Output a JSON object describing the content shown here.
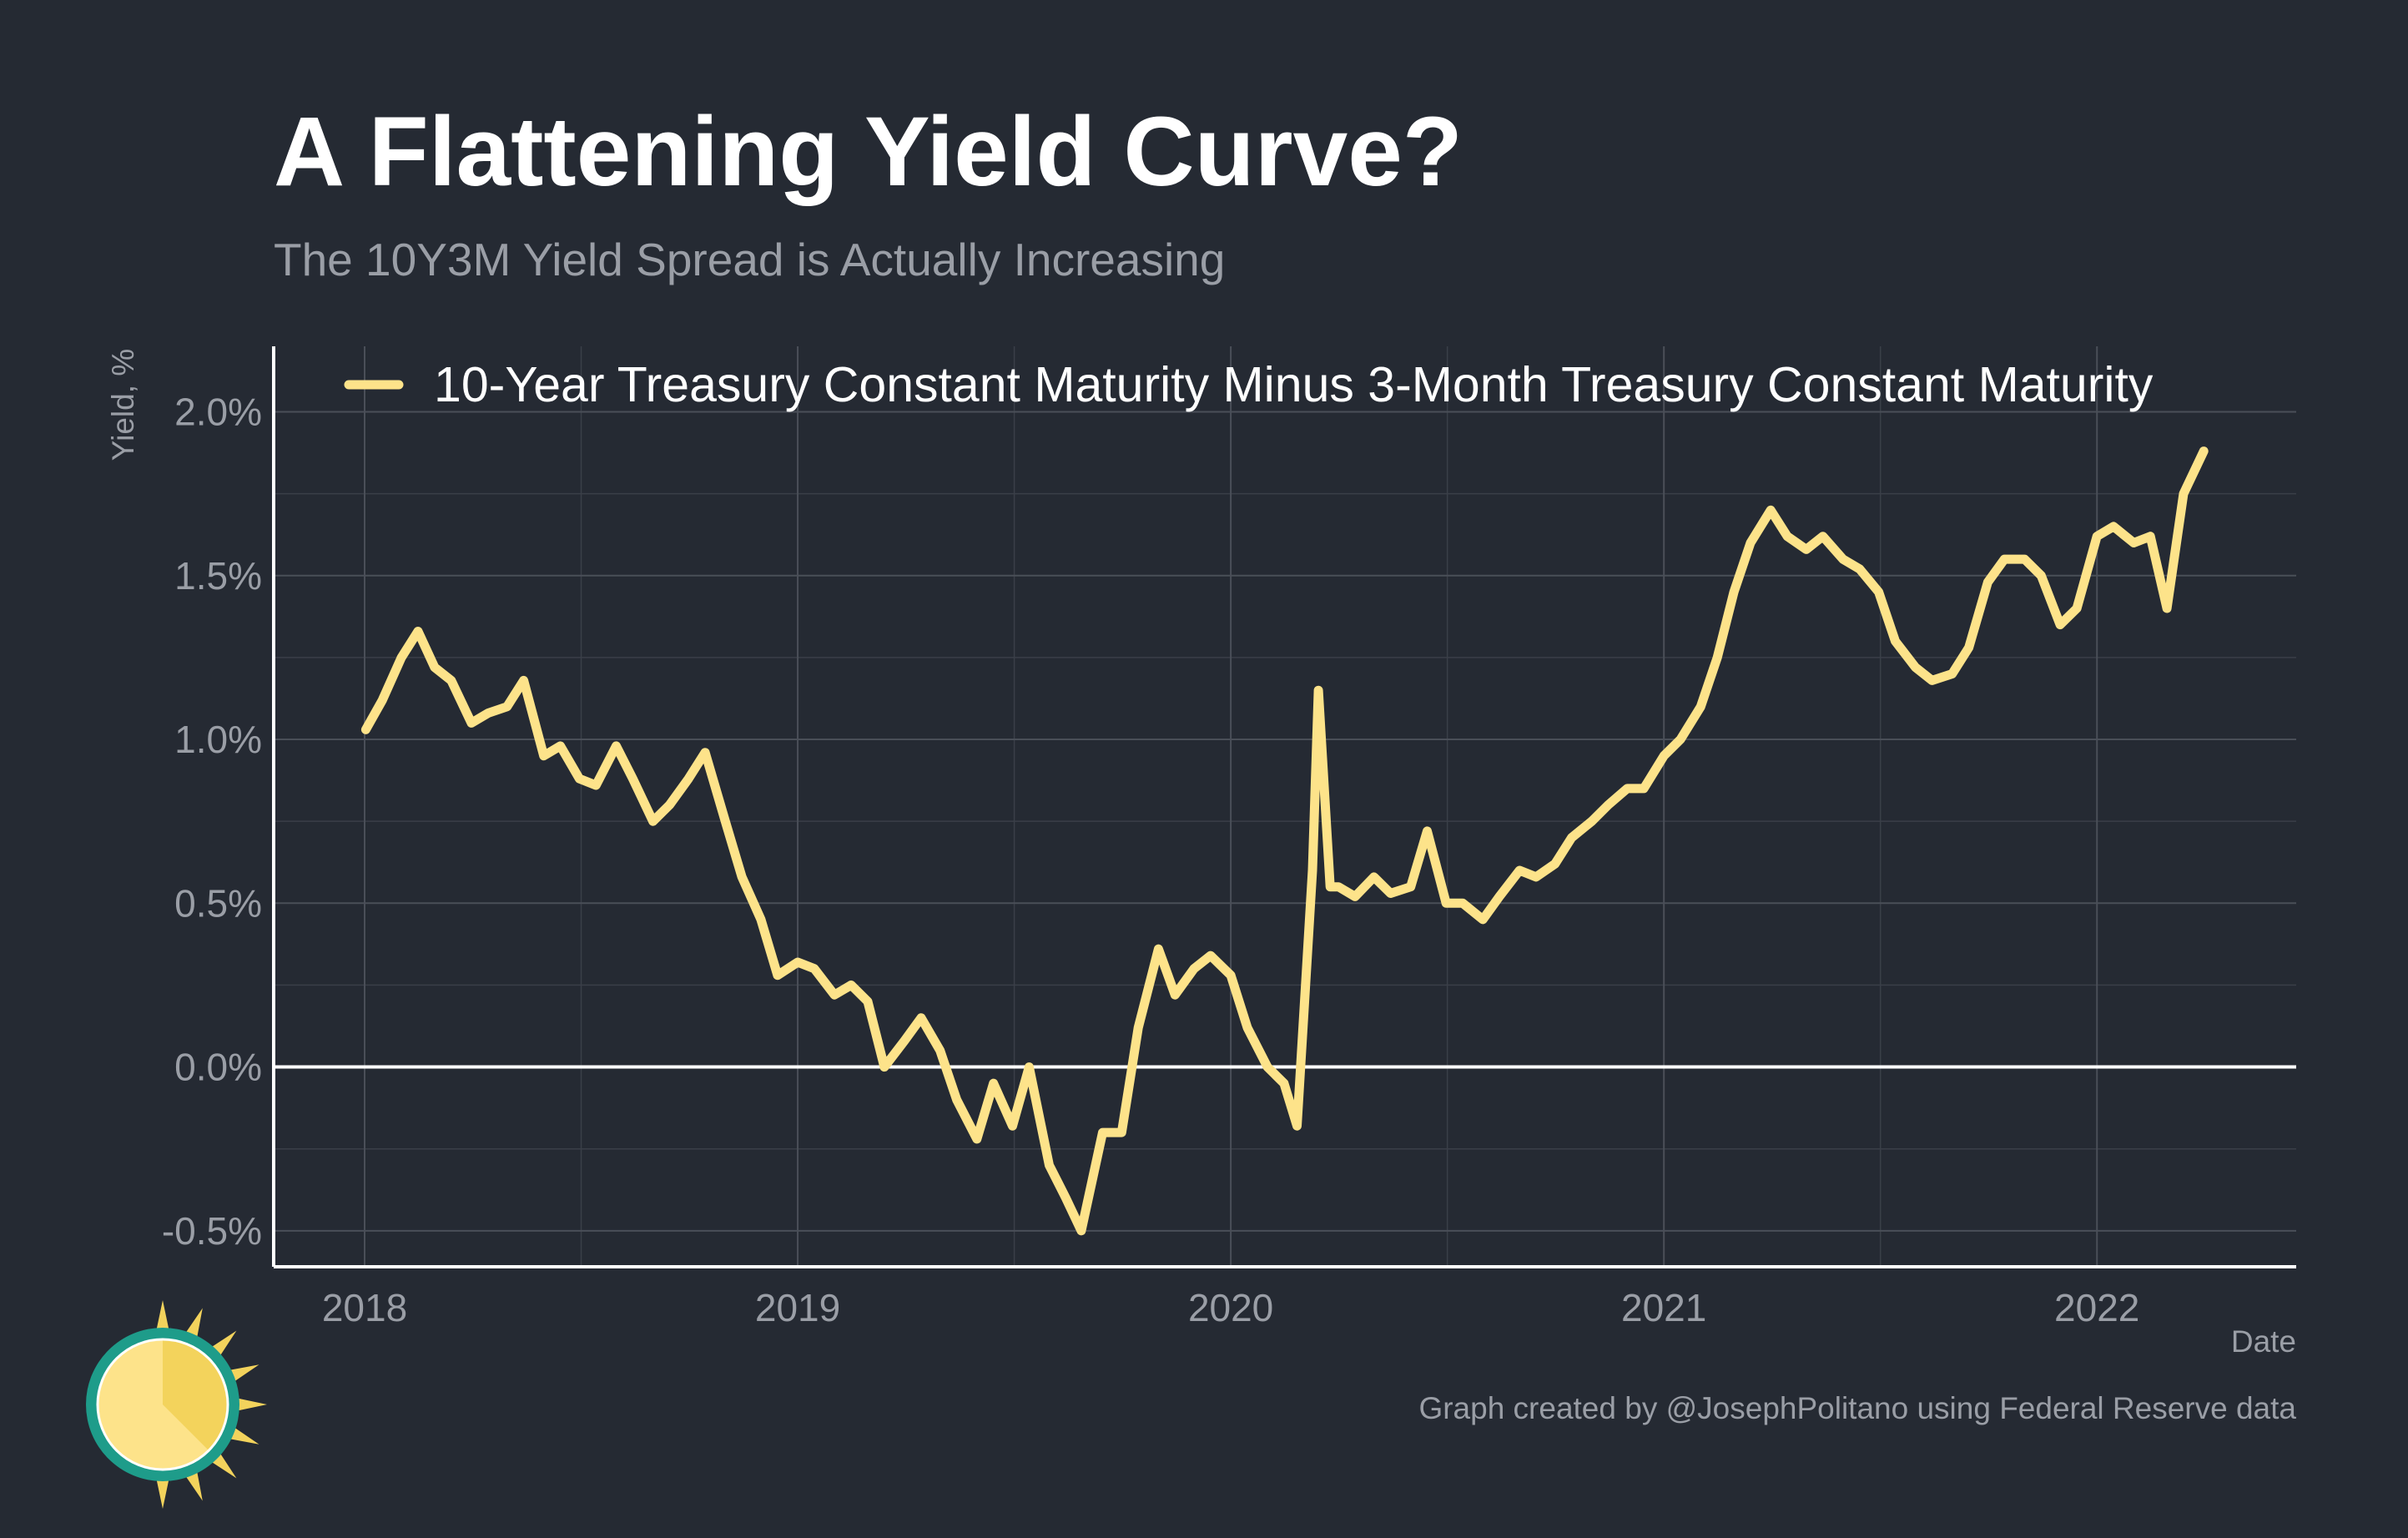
{
  "colors": {
    "background": "#252a33",
    "series": "#fde38a",
    "title": "#ffffff",
    "muted": "#9a9ea6",
    "grid": "#4a4f58",
    "zero_line": "#ffffff"
  },
  "logo": {
    "icon": "sun-logo-icon"
  },
  "chart_data": {
    "type": "line",
    "title": "A Flattening Yield Curve?",
    "subtitle": "The 10Y3M Yield Spread is Actually Increasing",
    "xlabel": "Date",
    "ylabel": "Yield, %",
    "caption": "Graph created by @JosephPolitano using Federal Reserve data",
    "xlim": [
      2017.79,
      2022.46
    ],
    "ylim": [
      -0.61,
      2.2
    ],
    "y_ticks": [
      -0.5,
      0.0,
      0.5,
      1.0,
      1.5,
      2.0
    ],
    "y_tick_labels": [
      "-0.5%",
      "0.0%",
      "0.5%",
      "1.0%",
      "1.5%",
      "2.0%"
    ],
    "x_ticks": [
      2018,
      2019,
      2020,
      2021,
      2022
    ],
    "x_tick_labels": [
      "2018",
      "2019",
      "2020",
      "2021",
      "2022"
    ],
    "grid": true,
    "legend_position": "top",
    "series": [
      {
        "name": "10-Year Treasury Constant Maturity Minus 3-Month Treasury Constant Maturity",
        "x": [
          "2018-01-02",
          "2018-01-16",
          "2018-02-01",
          "2018-02-15",
          "2018-03-01",
          "2018-03-15",
          "2018-04-01",
          "2018-04-15",
          "2018-05-01",
          "2018-05-15",
          "2018-06-01",
          "2018-06-15",
          "2018-07-01",
          "2018-07-15",
          "2018-08-01",
          "2018-08-15",
          "2018-09-01",
          "2018-09-15",
          "2018-10-01",
          "2018-10-15",
          "2018-11-01",
          "2018-11-15",
          "2018-12-01",
          "2018-12-15",
          "2019-01-01",
          "2019-01-15",
          "2019-02-01",
          "2019-02-15",
          "2019-03-01",
          "2019-03-15",
          "2019-04-01",
          "2019-04-15",
          "2019-05-01",
          "2019-05-15",
          "2019-06-01",
          "2019-06-15",
          "2019-07-01",
          "2019-07-15",
          "2019-08-01",
          "2019-08-15",
          "2019-08-28",
          "2019-09-15",
          "2019-10-01",
          "2019-10-15",
          "2019-11-01",
          "2019-11-15",
          "2019-12-01",
          "2019-12-15",
          "2020-01-01",
          "2020-01-15",
          "2020-02-01",
          "2020-02-15",
          "2020-02-26",
          "2020-03-05",
          "2020-03-10",
          "2020-03-15",
          "2020-03-25",
          "2020-04-01",
          "2020-04-15",
          "2020-05-01",
          "2020-05-15",
          "2020-06-01",
          "2020-06-15",
          "2020-07-01",
          "2020-07-15",
          "2020-08-01",
          "2020-08-15",
          "2020-09-01",
          "2020-09-15",
          "2020-10-01",
          "2020-10-15",
          "2020-11-01",
          "2020-11-15",
          "2020-12-01",
          "2020-12-15",
          "2021-01-01",
          "2021-01-15",
          "2021-02-01",
          "2021-02-15",
          "2021-03-01",
          "2021-03-15",
          "2021-04-01",
          "2021-04-15",
          "2021-05-01",
          "2021-05-15",
          "2021-06-01",
          "2021-06-15",
          "2021-07-01",
          "2021-07-15",
          "2021-08-01",
          "2021-08-15",
          "2021-09-01",
          "2021-09-15",
          "2021-10-01",
          "2021-10-15",
          "2021-11-01",
          "2021-11-15",
          "2021-12-01",
          "2021-12-15",
          "2022-01-01",
          "2022-01-15",
          "2022-02-01",
          "2022-02-15",
          "2022-03-01",
          "2022-03-15",
          "2022-04-01"
        ],
        "values": [
          1.03,
          1.12,
          1.25,
          1.33,
          1.22,
          1.18,
          1.05,
          1.08,
          1.1,
          1.18,
          0.95,
          0.98,
          0.88,
          0.86,
          0.98,
          0.88,
          0.75,
          0.8,
          0.88,
          0.96,
          0.75,
          0.58,
          0.45,
          0.28,
          0.32,
          0.3,
          0.22,
          0.25,
          0.2,
          0.0,
          0.08,
          0.15,
          0.05,
          -0.1,
          -0.22,
          -0.05,
          -0.18,
          0.0,
          -0.3,
          -0.4,
          -0.5,
          -0.2,
          -0.2,
          0.12,
          0.36,
          0.22,
          0.3,
          0.34,
          0.28,
          0.12,
          0.0,
          -0.05,
          -0.18,
          0.3,
          0.6,
          1.15,
          0.55,
          0.55,
          0.52,
          0.58,
          0.53,
          0.55,
          0.72,
          0.5,
          0.5,
          0.45,
          0.52,
          0.6,
          0.58,
          0.62,
          0.7,
          0.75,
          0.8,
          0.85,
          0.85,
          0.95,
          1.0,
          1.1,
          1.25,
          1.45,
          1.6,
          1.7,
          1.62,
          1.58,
          1.62,
          1.55,
          1.52,
          1.45,
          1.3,
          1.22,
          1.18,
          1.2,
          1.28,
          1.48,
          1.55,
          1.55,
          1.5,
          1.35,
          1.4,
          1.62,
          1.65,
          1.6,
          1.62,
          1.4,
          1.75,
          1.88
        ]
      }
    ]
  }
}
